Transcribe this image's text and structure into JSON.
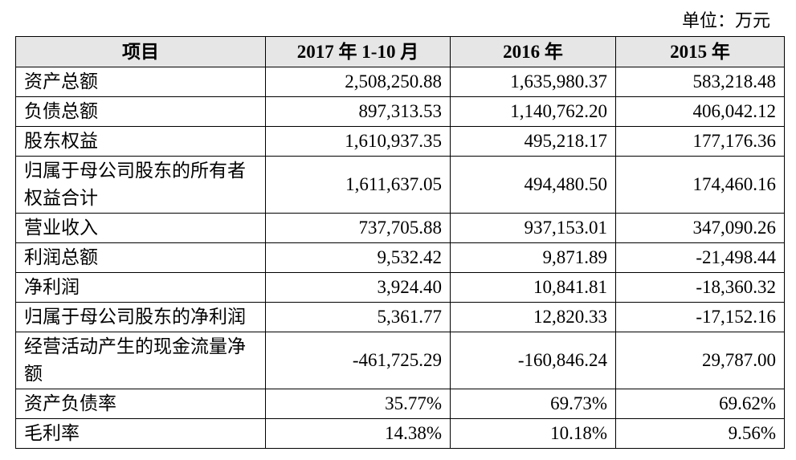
{
  "unit": "单位：万元",
  "table": {
    "header": [
      "项目",
      "2017 年 1-10 月",
      "2016 年",
      "2015 年"
    ],
    "rows": [
      [
        "资产总额",
        "2,508,250.88",
        "1,635,980.37",
        "583,218.48"
      ],
      [
        "负债总额",
        "897,313.53",
        "1,140,762.20",
        "406,042.12"
      ],
      [
        "股东权益",
        "1,610,937.35",
        "495,218.17",
        "177,176.36"
      ],
      [
        "归属于母公司股东的所有者权益合计",
        "1,611,637.05",
        "494,480.50",
        "174,460.16"
      ],
      [
        "营业收入",
        "737,705.88",
        "937,153.01",
        "347,090.26"
      ],
      [
        "利润总额",
        "9,532.42",
        "9,871.89",
        "-21,498.44"
      ],
      [
        "净利润",
        "3,924.40",
        "10,841.81",
        "-18,360.32"
      ],
      [
        "归属于母公司股东的净利润",
        "5,361.77",
        "12,820.33",
        "-17,152.16"
      ],
      [
        "经营活动产生的现金流量净额",
        "-461,725.29",
        "-160,846.24",
        "29,787.00"
      ],
      [
        "资产负债率",
        "35.77%",
        "69.73%",
        "69.62%"
      ],
      [
        "毛利率",
        "14.38%",
        "10.18%",
        "9.56%"
      ]
    ]
  }
}
